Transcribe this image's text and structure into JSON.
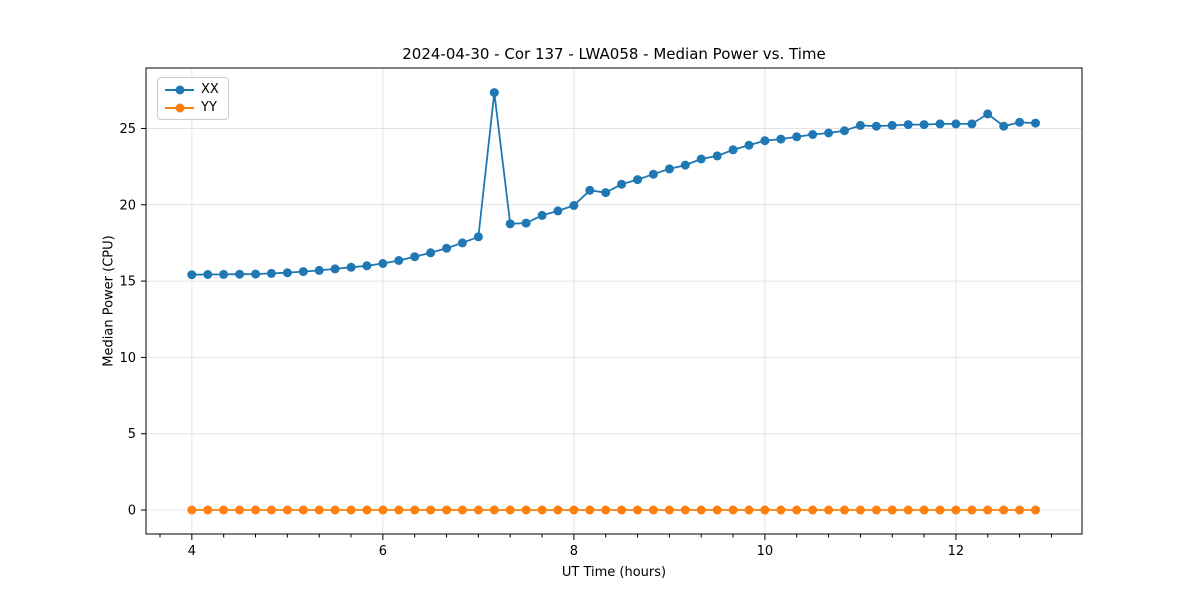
{
  "figure": {
    "title": "2024-04-30 - Cor 137 - LWA058 - Median Power vs. Time",
    "xlabel": "UT Time (hours)",
    "ylabel": "Median Power (CPU)"
  },
  "legend": {
    "items": [
      {
        "label": "XX",
        "color": "#1f77b4"
      },
      {
        "label": "YY",
        "color": "#ff7f0e"
      }
    ]
  },
  "colors": {
    "blue": "#1f77b4",
    "orange": "#ff7f0e",
    "grid": "#e4e4e4",
    "spine": "#000000",
    "tick_text": "#000000"
  },
  "chart_data": {
    "type": "line",
    "title": "2024-04-30 - Cor 137 - LWA058 - Median Power vs. Time",
    "xlabel": "UT Time (hours)",
    "ylabel": "Median Power (CPU)",
    "grid": true,
    "legend_position": "upper-left",
    "xlim": [
      3.52,
      13.32
    ],
    "ylim": [
      -1.57,
      28.96
    ],
    "x_major_ticks": [
      4,
      6,
      8,
      10,
      12
    ],
    "x_minor_step": 0.33333,
    "y_major_ticks": [
      0,
      5,
      10,
      15,
      20,
      25
    ],
    "x": [
      4.0,
      4.167,
      4.333,
      4.5,
      4.667,
      4.833,
      5.0,
      5.167,
      5.333,
      5.5,
      5.667,
      5.833,
      6.0,
      6.167,
      6.333,
      6.5,
      6.667,
      6.833,
      7.0,
      7.167,
      7.333,
      7.5,
      7.667,
      7.833,
      8.0,
      8.167,
      8.333,
      8.5,
      8.667,
      8.833,
      9.0,
      9.167,
      9.333,
      9.5,
      9.667,
      9.833,
      10.0,
      10.167,
      10.333,
      10.5,
      10.667,
      10.833,
      11.0,
      11.167,
      11.333,
      11.5,
      11.667,
      11.833,
      12.0,
      12.167,
      12.333,
      12.5,
      12.667,
      12.833
    ],
    "series": [
      {
        "name": "XX",
        "color": "#1f77b4",
        "values": [
          15.42,
          15.43,
          15.44,
          15.45,
          15.46,
          15.5,
          15.55,
          15.62,
          15.7,
          15.8,
          15.9,
          16.0,
          16.15,
          16.35,
          16.6,
          16.85,
          17.15,
          17.5,
          17.9,
          27.35,
          18.75,
          18.8,
          19.3,
          19.6,
          19.95,
          20.95,
          20.8,
          21.35,
          21.65,
          22.0,
          22.35,
          22.6,
          23.0,
          23.2,
          23.6,
          23.9,
          24.2,
          24.3,
          24.45,
          24.6,
          24.7,
          24.85,
          25.2,
          25.15,
          25.2,
          25.25,
          25.25,
          25.3,
          25.3,
          25.3,
          25.95,
          25.15,
          25.4,
          25.35
        ]
      },
      {
        "name": "YY",
        "color": "#ff7f0e",
        "values": [
          0.0,
          0.0,
          0.0,
          0.0,
          0.0,
          0.0,
          0.0,
          0.0,
          0.0,
          0.0,
          0.0,
          0.0,
          0.0,
          0.0,
          0.0,
          0.0,
          0.0,
          0.0,
          0.0,
          0.0,
          0.0,
          0.0,
          0.0,
          0.0,
          0.0,
          0.0,
          0.0,
          0.0,
          0.0,
          0.0,
          0.0,
          0.0,
          0.0,
          0.0,
          0.0,
          0.0,
          0.0,
          0.0,
          0.0,
          0.0,
          0.0,
          0.0,
          0.0,
          0.0,
          0.0,
          0.0,
          0.0,
          0.0,
          0.0,
          0.0,
          0.0,
          0.0,
          0.0,
          0.0
        ]
      }
    ]
  }
}
